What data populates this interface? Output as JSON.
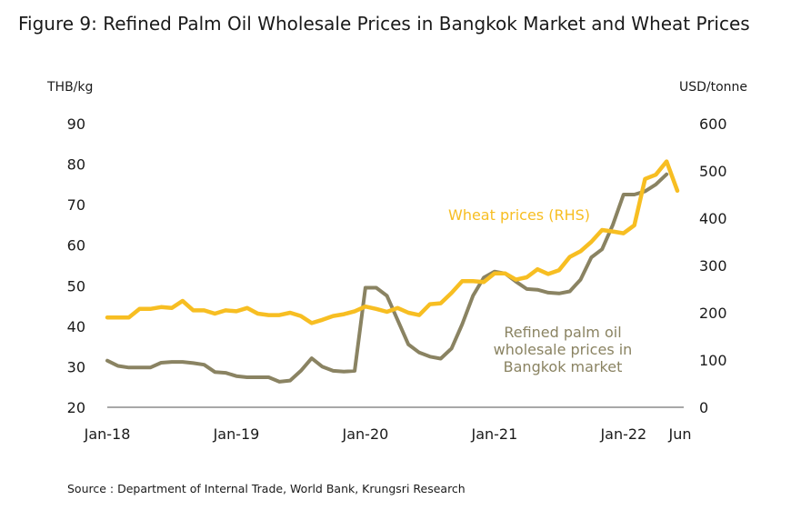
{
  "title": "Figure 9: Refined Palm Oil Wholesale Prices in Bangkok Market and Wheat Prices",
  "source": "Source : Department of Internal Trade, World Bank, Krungsri Research",
  "chart_data": {
    "type": "line",
    "left_axis": {
      "unit_label": "THB/kg",
      "ticks": [
        20,
        30,
        40,
        50,
        60,
        70,
        80,
        90
      ],
      "range": [
        20,
        90
      ]
    },
    "right_axis": {
      "unit_label": "USD/tonne",
      "ticks": [
        0,
        100,
        200,
        300,
        400,
        500,
        600
      ],
      "range": [
        0,
        600
      ]
    },
    "x_tick_labels": [
      "Jan-18",
      "Jan-19",
      "Jan-20",
      "Jan-21",
      "Jan-22",
      "Jun"
    ],
    "x_tick_months": [
      0,
      12,
      24,
      36,
      48,
      53
    ],
    "month_count": 54,
    "series": [
      {
        "name": "Refined palm oil wholesale prices in Bangkok market",
        "axis": "left",
        "color": "#8a8362",
        "values": [
          31.5,
          30.2,
          29.8,
          29.8,
          29.8,
          31.0,
          31.2,
          31.2,
          30.9,
          30.5,
          28.7,
          28.5,
          27.7,
          27.4,
          27.4,
          27.4,
          26.3,
          26.6,
          29.0,
          32.1,
          30.0,
          29.0,
          28.8,
          29.0,
          49.5,
          49.5,
          47.5,
          41.5,
          35.5,
          33.5,
          32.5,
          32.0,
          34.5,
          40.5,
          47.5,
          52.0,
          53.5,
          53.0,
          51.0,
          49.2,
          49.0,
          48.3,
          48.1,
          48.6,
          51.5,
          57.0,
          59.0,
          65.0,
          72.5,
          72.5,
          73.3,
          75.0,
          77.5
        ]
      },
      {
        "name": "Wheat prices (RHS)",
        "axis": "right",
        "color": "#f7be22",
        "values": [
          190,
          190,
          190,
          208,
          208,
          212,
          210,
          225,
          205,
          205,
          198,
          205,
          203,
          210,
          198,
          195,
          195,
          200,
          193,
          178,
          185,
          193,
          197,
          203,
          213,
          208,
          202,
          210,
          200,
          195,
          218,
          220,
          242,
          267,
          267,
          265,
          283,
          283,
          270,
          275,
          292,
          282,
          290,
          318,
          330,
          350,
          375,
          372,
          368,
          385,
          483,
          492,
          520,
          458
        ]
      }
    ],
    "annotations": [
      {
        "text": "Wheat prices (RHS)",
        "color": "#f7be22"
      },
      {
        "text": "Refined palm oil wholesale prices in Bangkok market",
        "lines": [
          "Refined palm oil",
          "wholesale prices in",
          "Bangkok market"
        ],
        "color": "#8a8362"
      }
    ],
    "grid": false
  }
}
